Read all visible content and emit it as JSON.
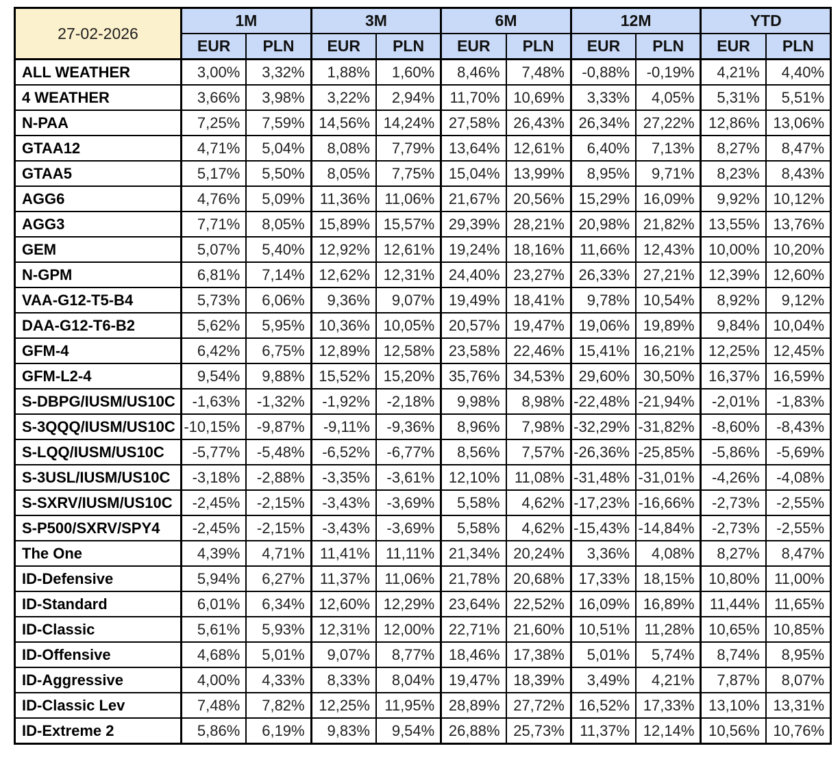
{
  "colors": {
    "date_bg": "#fcf1cd",
    "period_bg": "#c9daf8",
    "grid": "#000000"
  },
  "chart_data": {
    "type": "table",
    "date_label": "27-02-2026",
    "column_groups": [
      "1M",
      "3M",
      "6M",
      "12M",
      "YTD"
    ],
    "sub_columns": [
      "EUR",
      "PLN"
    ],
    "columns": [
      "1M EUR",
      "1M PLN",
      "3M EUR",
      "3M PLN",
      "6M EUR",
      "6M PLN",
      "12M EUR",
      "12M PLN",
      "YTD EUR",
      "YTD PLN"
    ],
    "rows": [
      {
        "name": "ALL WEATHER",
        "values": [
          "3,00%",
          "3,32%",
          "1,88%",
          "1,60%",
          "8,46%",
          "7,48%",
          "-0,88%",
          "-0,19%",
          "4,21%",
          "4,40%"
        ]
      },
      {
        "name": "4 WEATHER",
        "values": [
          "3,66%",
          "3,98%",
          "3,22%",
          "2,94%",
          "11,70%",
          "10,69%",
          "3,33%",
          "4,05%",
          "5,31%",
          "5,51%"
        ]
      },
      {
        "name": "N-PAA",
        "values": [
          "7,25%",
          "7,59%",
          "14,56%",
          "14,24%",
          "27,58%",
          "26,43%",
          "26,34%",
          "27,22%",
          "12,86%",
          "13,06%"
        ]
      },
      {
        "name": "GTAA12",
        "values": [
          "4,71%",
          "5,04%",
          "8,08%",
          "7,79%",
          "13,64%",
          "12,61%",
          "6,40%",
          "7,13%",
          "8,27%",
          "8,47%"
        ]
      },
      {
        "name": "GTAA5",
        "values": [
          "5,17%",
          "5,50%",
          "8,05%",
          "7,75%",
          "15,04%",
          "13,99%",
          "8,95%",
          "9,71%",
          "8,23%",
          "8,43%"
        ]
      },
      {
        "name": "AGG6",
        "values": [
          "4,76%",
          "5,09%",
          "11,36%",
          "11,06%",
          "21,67%",
          "20,56%",
          "15,29%",
          "16,09%",
          "9,92%",
          "10,12%"
        ]
      },
      {
        "name": "AGG3",
        "values": [
          "7,71%",
          "8,05%",
          "15,89%",
          "15,57%",
          "29,39%",
          "28,21%",
          "20,98%",
          "21,82%",
          "13,55%",
          "13,76%"
        ]
      },
      {
        "name": "GEM",
        "values": [
          "5,07%",
          "5,40%",
          "12,92%",
          "12,61%",
          "19,24%",
          "18,16%",
          "11,66%",
          "12,43%",
          "10,00%",
          "10,20%"
        ]
      },
      {
        "name": "N-GPM",
        "values": [
          "6,81%",
          "7,14%",
          "12,62%",
          "12,31%",
          "24,40%",
          "23,27%",
          "26,33%",
          "27,21%",
          "12,39%",
          "12,60%"
        ]
      },
      {
        "name": "VAA-G12-T5-B4",
        "values": [
          "5,73%",
          "6,06%",
          "9,36%",
          "9,07%",
          "19,49%",
          "18,41%",
          "9,78%",
          "10,54%",
          "8,92%",
          "9,12%"
        ]
      },
      {
        "name": "DAA-G12-T6-B2",
        "values": [
          "5,62%",
          "5,95%",
          "10,36%",
          "10,05%",
          "20,57%",
          "19,47%",
          "19,06%",
          "19,89%",
          "9,84%",
          "10,04%"
        ]
      },
      {
        "name": "GFM-4",
        "values": [
          "6,42%",
          "6,75%",
          "12,89%",
          "12,58%",
          "23,58%",
          "22,46%",
          "15,41%",
          "16,21%",
          "12,25%",
          "12,45%"
        ]
      },
      {
        "name": "GFM-L2-4",
        "values": [
          "9,54%",
          "9,88%",
          "15,52%",
          "15,20%",
          "35,76%",
          "34,53%",
          "29,60%",
          "30,50%",
          "16,37%",
          "16,59%"
        ]
      },
      {
        "name": "S-DBPG/IUSM/US10C",
        "values": [
          "-1,63%",
          "-1,32%",
          "-1,92%",
          "-2,18%",
          "9,98%",
          "8,98%",
          "-22,48%",
          "-21,94%",
          "-2,01%",
          "-1,83%"
        ]
      },
      {
        "name": "S-3QQQ/IUSM/US10C",
        "values": [
          "-10,15%",
          "-9,87%",
          "-9,11%",
          "-9,36%",
          "8,96%",
          "7,98%",
          "-32,29%",
          "-31,82%",
          "-8,60%",
          "-8,43%"
        ]
      },
      {
        "name": "S-LQQ/IUSM/US10C",
        "values": [
          "-5,77%",
          "-5,48%",
          "-6,52%",
          "-6,77%",
          "8,56%",
          "7,57%",
          "-26,36%",
          "-25,85%",
          "-5,86%",
          "-5,69%"
        ]
      },
      {
        "name": "S-3USL/IUSM/US10C",
        "values": [
          "-3,18%",
          "-2,88%",
          "-3,35%",
          "-3,61%",
          "12,10%",
          "11,08%",
          "-31,48%",
          "-31,01%",
          "-4,26%",
          "-4,08%"
        ]
      },
      {
        "name": "S-SXRV/IUSM/US10C",
        "values": [
          "-2,45%",
          "-2,15%",
          "-3,43%",
          "-3,69%",
          "5,58%",
          "4,62%",
          "-17,23%",
          "-16,66%",
          "-2,73%",
          "-2,55%"
        ]
      },
      {
        "name": "S-P500/SXRV/SPY4",
        "values": [
          "-2,45%",
          "-2,15%",
          "-3,43%",
          "-3,69%",
          "5,58%",
          "4,62%",
          "-15,43%",
          "-14,84%",
          "-2,73%",
          "-2,55%"
        ]
      },
      {
        "name": "The One",
        "values": [
          "4,39%",
          "4,71%",
          "11,41%",
          "11,11%",
          "21,34%",
          "20,24%",
          "3,36%",
          "4,08%",
          "8,27%",
          "8,47%"
        ]
      },
      {
        "name": "ID-Defensive",
        "values": [
          "5,94%",
          "6,27%",
          "11,37%",
          "11,06%",
          "21,78%",
          "20,68%",
          "17,33%",
          "18,15%",
          "10,80%",
          "11,00%"
        ]
      },
      {
        "name": "ID-Standard",
        "values": [
          "6,01%",
          "6,34%",
          "12,60%",
          "12,29%",
          "23,64%",
          "22,52%",
          "16,09%",
          "16,89%",
          "11,44%",
          "11,65%"
        ]
      },
      {
        "name": "ID-Classic",
        "values": [
          "5,61%",
          "5,93%",
          "12,31%",
          "12,00%",
          "22,71%",
          "21,60%",
          "10,51%",
          "11,28%",
          "10,65%",
          "10,85%"
        ]
      },
      {
        "name": "ID-Offensive",
        "values": [
          "4,68%",
          "5,01%",
          "9,07%",
          "8,77%",
          "18,46%",
          "17,38%",
          "5,01%",
          "5,74%",
          "8,74%",
          "8,95%"
        ]
      },
      {
        "name": "ID-Aggressive",
        "values": [
          "4,00%",
          "4,33%",
          "8,33%",
          "8,04%",
          "19,47%",
          "18,39%",
          "3,49%",
          "4,21%",
          "7,87%",
          "8,07%"
        ]
      },
      {
        "name": "ID-Classic Lev",
        "values": [
          "7,48%",
          "7,82%",
          "12,25%",
          "11,95%",
          "28,89%",
          "27,72%",
          "16,52%",
          "17,33%",
          "13,10%",
          "13,31%"
        ]
      },
      {
        "name": "ID-Extreme 2",
        "values": [
          "5,86%",
          "6,19%",
          "9,83%",
          "9,54%",
          "26,88%",
          "25,73%",
          "11,37%",
          "12,14%",
          "10,56%",
          "10,76%"
        ]
      }
    ]
  }
}
